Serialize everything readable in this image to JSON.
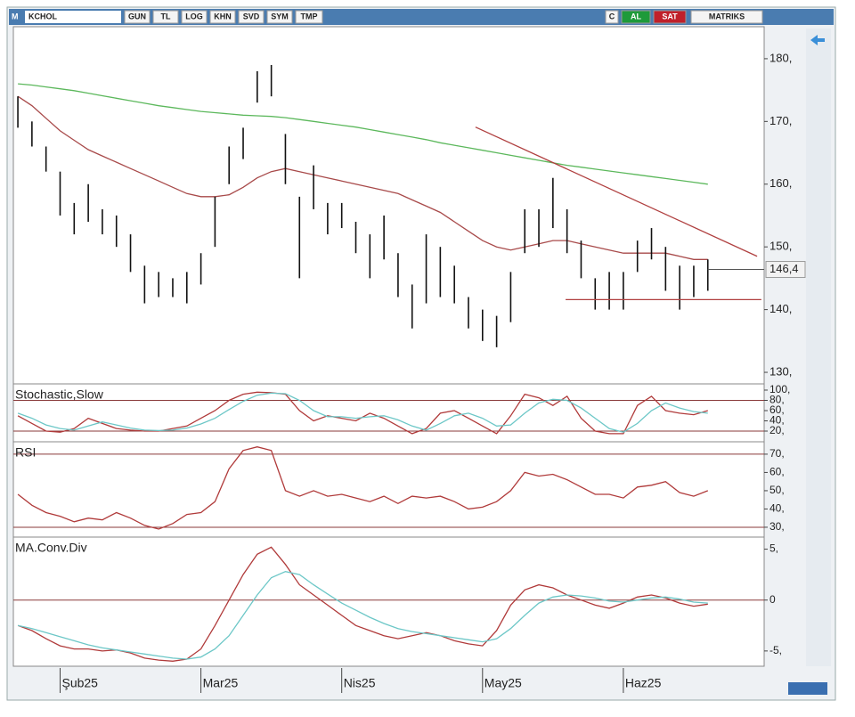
{
  "toolbar": {
    "menu": "M",
    "symbol": "KCHOL",
    "buttons": [
      "GUN",
      "TL",
      "LOG",
      "KHN",
      "SVD",
      "SYM",
      "TMP"
    ],
    "right": [
      "C",
      "AL",
      "SAT",
      "MATRIKS"
    ]
  },
  "chart_data": [
    {
      "type": "range",
      "color": "#111111",
      "high": [
        174,
        170,
        166,
        162,
        157,
        160,
        156,
        155,
        152,
        147,
        146,
        145,
        146,
        149,
        158,
        166,
        169,
        178,
        179,
        168,
        158,
        163,
        157,
        157,
        154,
        152,
        155,
        149,
        144,
        152,
        150,
        147,
        142,
        140,
        139,
        146,
        156,
        156,
        161,
        156,
        151,
        145,
        146,
        146,
        151,
        153,
        150,
        147,
        147,
        148
      ],
      "low": [
        169,
        166,
        162,
        155,
        152,
        154,
        152,
        150,
        146,
        141,
        142,
        142,
        141,
        144,
        150,
        160,
        164,
        173,
        174,
        160,
        145,
        156,
        152,
        153,
        149,
        145,
        148,
        142,
        137,
        141,
        142,
        141,
        137,
        135,
        134,
        138,
        149,
        150,
        153,
        149,
        145,
        140,
        140,
        140,
        146,
        148,
        143,
        140,
        142,
        143
      ],
      "series": [
        {
          "color": "#a84a4a",
          "values": [
            174,
            172.5,
            170.5,
            168.5,
            167,
            165.5,
            164.5,
            163.5,
            162.5,
            161.5,
            160.5,
            159.5,
            158.5,
            158,
            158,
            158.3,
            159.5,
            161,
            162,
            162.5,
            162,
            161.5,
            161,
            160.5,
            160,
            159.5,
            159,
            158.5,
            157.5,
            156.5,
            155.5,
            154,
            152.5,
            151,
            150,
            149.5,
            150,
            150.5,
            151,
            151,
            150.5,
            150,
            149.5,
            149,
            149,
            149,
            149,
            148.5,
            148,
            148
          ]
        },
        {
          "color": "#5cb85c",
          "values": [
            176,
            175.8,
            175.5,
            175.2,
            174.9,
            174.5,
            174.1,
            173.7,
            173.3,
            172.9,
            172.5,
            172.2,
            171.9,
            171.6,
            171.4,
            171.2,
            171,
            170.9,
            170.8,
            170.6,
            170.3,
            170,
            169.7,
            169.4,
            169.1,
            168.7,
            168.3,
            167.9,
            167.5,
            167.1,
            166.6,
            166.2,
            165.8,
            165.4,
            165,
            164.6,
            164.2,
            163.8,
            163.4,
            163,
            162.7,
            162.4,
            162.1,
            161.8,
            161.5,
            161.2,
            160.9,
            160.6,
            160.3,
            160
          ]
        }
      ],
      "trendlines": [
        {
          "color": "#b04040",
          "x": [
            32.5,
            52.5
          ],
          "y": [
            169.1,
            148.5
          ]
        },
        {
          "color": "#b04040",
          "x": [
            38.9,
            52.8
          ],
          "y": [
            141.6,
            141.6
          ]
        }
      ],
      "last": {
        "value": 146.4,
        "label": "146,4"
      },
      "xlim": [
        -0.32,
        53.0
      ],
      "ylim": [
        128.3,
        185.1
      ],
      "yticks": [
        {
          "value": 130,
          "label": "130,"
        },
        {
          "value": 140,
          "label": "140,"
        },
        {
          "value": 150,
          "label": "150,"
        },
        {
          "value": 160,
          "label": "160,"
        },
        {
          "value": 170,
          "label": "170,"
        },
        {
          "value": 180,
          "label": "180,"
        }
      ]
    },
    {
      "type": "line",
      "title": "Stochastic,Slow",
      "series": [
        {
          "color": "#b03a3a",
          "values": [
            50,
            35,
            20,
            18,
            25,
            45,
            35,
            25,
            22,
            20,
            20,
            25,
            30,
            45,
            60,
            80,
            92,
            96,
            95,
            92,
            60,
            40,
            50,
            45,
            40,
            55,
            45,
            30,
            15,
            25,
            55,
            60,
            45,
            30,
            15,
            50,
            92,
            85,
            70,
            88,
            45,
            20,
            15,
            15,
            70,
            88,
            60,
            55,
            52,
            60
          ]
        },
        {
          "color": "#6cc7c7",
          "values": [
            55,
            45,
            32,
            25,
            22,
            30,
            38,
            32,
            26,
            22,
            21,
            22,
            26,
            34,
            45,
            62,
            78,
            90,
            94,
            93,
            80,
            60,
            48,
            48,
            45,
            48,
            50,
            42,
            30,
            22,
            35,
            50,
            55,
            45,
            30,
            32,
            55,
            75,
            82,
            80,
            65,
            45,
            25,
            18,
            35,
            60,
            75,
            65,
            58,
            55
          ]
        }
      ],
      "levels": [
        80,
        20
      ],
      "ylim": [
        0.9,
        110.4
      ],
      "yticks": [
        {
          "value": 20,
          "label": "20,"
        },
        {
          "value": 40,
          "label": "40,"
        },
        {
          "value": 60,
          "label": "60,"
        },
        {
          "value": 80,
          "label": "80,"
        },
        {
          "value": 100,
          "label": "100,"
        }
      ]
    },
    {
      "type": "line",
      "title": "RSI",
      "series": [
        {
          "color": "#b03a3a",
          "values": [
            48,
            42,
            38,
            36,
            33,
            35,
            34,
            38,
            35,
            31,
            29,
            32,
            37,
            38,
            44,
            62,
            72,
            74,
            72,
            50,
            47,
            50,
            47,
            48,
            46,
            44,
            47,
            43,
            47,
            46,
            47,
            44,
            40,
            41,
            44,
            50,
            60,
            58,
            59,
            56,
            52,
            48,
            48,
            46,
            52,
            53,
            55,
            49,
            47,
            50
          ]
        }
      ],
      "levels": [
        70,
        30
      ],
      "ylim": [
        25.1,
        76.3
      ],
      "yticks": [
        {
          "value": 30,
          "label": "30,"
        },
        {
          "value": 40,
          "label": "40,"
        },
        {
          "value": 50,
          "label": "50,"
        },
        {
          "value": 60,
          "label": "60,"
        },
        {
          "value": 70,
          "label": "70,"
        }
      ]
    },
    {
      "type": "line",
      "title": "MA.Conv.Div",
      "series": [
        {
          "color": "#b03a3a",
          "values": [
            -2.5,
            -3,
            -3.8,
            -4.5,
            -4.8,
            -4.8,
            -5,
            -4.9,
            -5.2,
            -5.7,
            -5.9,
            -6,
            -5.8,
            -4.8,
            -2.5,
            0,
            2.5,
            4.5,
            5.2,
            3.5,
            1.5,
            0.5,
            -0.5,
            -1.5,
            -2.5,
            -3,
            -3.5,
            -3.8,
            -3.5,
            -3.2,
            -3.5,
            -4,
            -4.3,
            -4.5,
            -3,
            -0.5,
            1,
            1.5,
            1.2,
            0.5,
            0,
            -0.5,
            -0.8,
            -0.3,
            0.3,
            0.5,
            0.2,
            -0.3,
            -0.6,
            -0.4
          ]
        },
        {
          "color": "#6cc7c7",
          "values": [
            -2.5,
            -2.8,
            -3.2,
            -3.6,
            -4,
            -4.4,
            -4.7,
            -4.9,
            -5.1,
            -5.3,
            -5.5,
            -5.7,
            -5.8,
            -5.6,
            -4.8,
            -3.5,
            -1.5,
            0.5,
            2.2,
            2.8,
            2.5,
            1.5,
            0.6,
            -0.3,
            -1,
            -1.7,
            -2.3,
            -2.8,
            -3.1,
            -3.3,
            -3.5,
            -3.7,
            -3.9,
            -4.1,
            -3.8,
            -2.8,
            -1.5,
            -0.3,
            0.3,
            0.5,
            0.4,
            0.2,
            -0.1,
            -0.2,
            0,
            0.2,
            0.3,
            0.1,
            -0.2,
            -0.3
          ]
        }
      ],
      "levels": [
        0
      ],
      "ylim": [
        -6.5,
        6.1
      ],
      "yticks": [
        {
          "value": -5,
          "label": "-5,"
        },
        0,
        {
          "value": 5,
          "label": "5,"
        }
      ],
      "xticks": [
        {
          "value": 3,
          "label": "Şub25"
        },
        {
          "value": 13,
          "label": "Mar25"
        },
        {
          "value": 23,
          "label": "Nis25"
        },
        {
          "value": 33,
          "label": "May25"
        },
        {
          "value": 43,
          "label": "Haz25"
        }
      ]
    }
  ]
}
